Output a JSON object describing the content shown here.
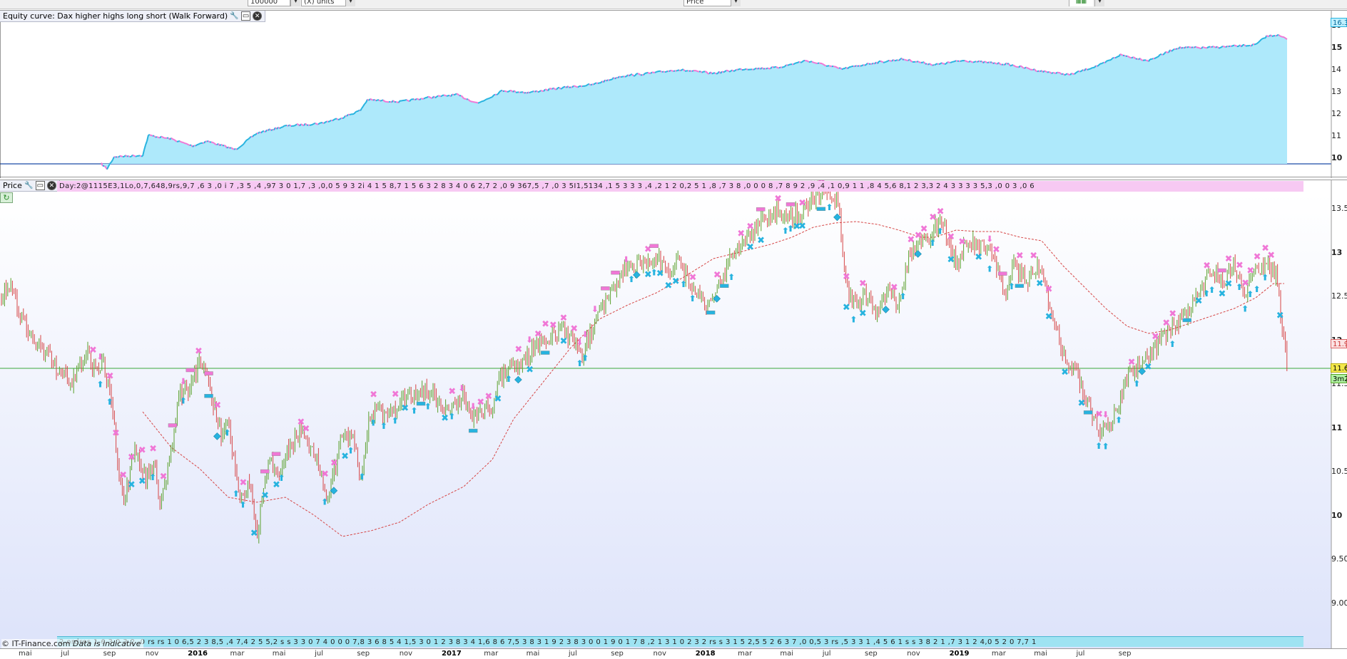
{
  "toolbar": {
    "field1": "100000",
    "field2": "(X) units",
    "field3": "Price",
    "field4": ""
  },
  "equity_panel": {
    "title": "Equity curve: Dax higher highs long short (Walk Forward)",
    "y_labels": [
      "16",
      "15",
      "14",
      "13",
      "12",
      "11",
      "10"
    ],
    "last_value_tag": "16.3",
    "line_colors": {
      "up": "#27b3df",
      "down": "#f077d6",
      "fill": "#aee9fb"
    }
  },
  "price_panel": {
    "title": "Price",
    "info_strip": "Day:2@1115E3,1Lo,0,7,648,9rs,9,7  ,6 3 ,0  i 7  ,3 5 ,4 ,97 3 0 1,7 ,3  ,0,0  5 9 3 2i  4 1 5  8,7 1 5 6 3 2  8 3 4  0 6 2,7 2 ,0  9 367,5 ,7 ,0 3 5I1,5134 ,1 5 3 3 3  ,4 ,2  1 2 0,2 5 1 ,8  ,7 3 8 ,0 0 0  8  ,7  8 9 2 ,9  ,4 ,1 0,9  1  1  ,8 4 5,6 8,1 2  3,3 2  4 3 3 3 3  5,3 ,0 0 3 ,0 6",
    "y_labels": [
      "13.5",
      "13",
      "12.5",
      "12",
      "11.5",
      "11",
      "10.5",
      "10",
      "9.50",
      "9.00"
    ],
    "last_price_tag": "11.6",
    "ma_tag": "11.9",
    "extra_tag": "3m2",
    "bottom_strip": "2 ordres 1,6 3  0 3 2 ,0  rs rs 1  0 6,5  2  3 8,5 ,4 7,4 2  5 5,2 s s 3 3  0 7 4 0  0 0 7,8 3  6 8 5  4 1,5 3  0 1  2 3 8 3 4 1,6  8 6 7,5 3 8 3 1 9 2 3 8 3 0 0 1 9  0 1 7 8 ,2 1 3 1 0 2  3  2 rs s 3 1  5 2,5 5  2 6 3 7 ,0  0,5 3 rs  ,5  3 3 1  ,4 5 6 1 s s 3 8 2 1  ,7  3 1 2  4,0  5 2 0 7,7 1",
    "copyright": "© IT-Finance.com",
    "copyright_suffix": "Data is indicative"
  },
  "xaxis": {
    "labels": [
      {
        "text": "mai",
        "year": false
      },
      {
        "text": "jul",
        "year": false
      },
      {
        "text": "sep",
        "year": false
      },
      {
        "text": "nov",
        "year": false
      },
      {
        "text": "2016",
        "year": true
      },
      {
        "text": "mar",
        "year": false
      },
      {
        "text": "mai",
        "year": false
      },
      {
        "text": "jul",
        "year": false
      },
      {
        "text": "sep",
        "year": false
      },
      {
        "text": "nov",
        "year": false
      },
      {
        "text": "2017",
        "year": true
      },
      {
        "text": "mar",
        "year": false
      },
      {
        "text": "mai",
        "year": false
      },
      {
        "text": "jul",
        "year": false
      },
      {
        "text": "sep",
        "year": false
      },
      {
        "text": "nov",
        "year": false
      },
      {
        "text": "2018",
        "year": true
      },
      {
        "text": "mar",
        "year": false
      },
      {
        "text": "mai",
        "year": false
      },
      {
        "text": "jul",
        "year": false
      },
      {
        "text": "sep",
        "year": false
      },
      {
        "text": "nov",
        "year": false
      },
      {
        "text": "2019",
        "year": true
      },
      {
        "text": "mar",
        "year": false
      },
      {
        "text": "mai",
        "year": false
      },
      {
        "text": "jul",
        "year": false
      },
      {
        "text": "sep",
        "year": false
      }
    ]
  },
  "colors": {
    "price_bg_top": "#ffffff",
    "price_bg_bottom": "#dde3fa",
    "candle_up": "#5aa02c",
    "candle_down": "#d64545",
    "ma": "#d64545",
    "hline": "#3aa83a",
    "buy_marker": "#27b3df",
    "sell_marker": "#f077d6"
  }
}
